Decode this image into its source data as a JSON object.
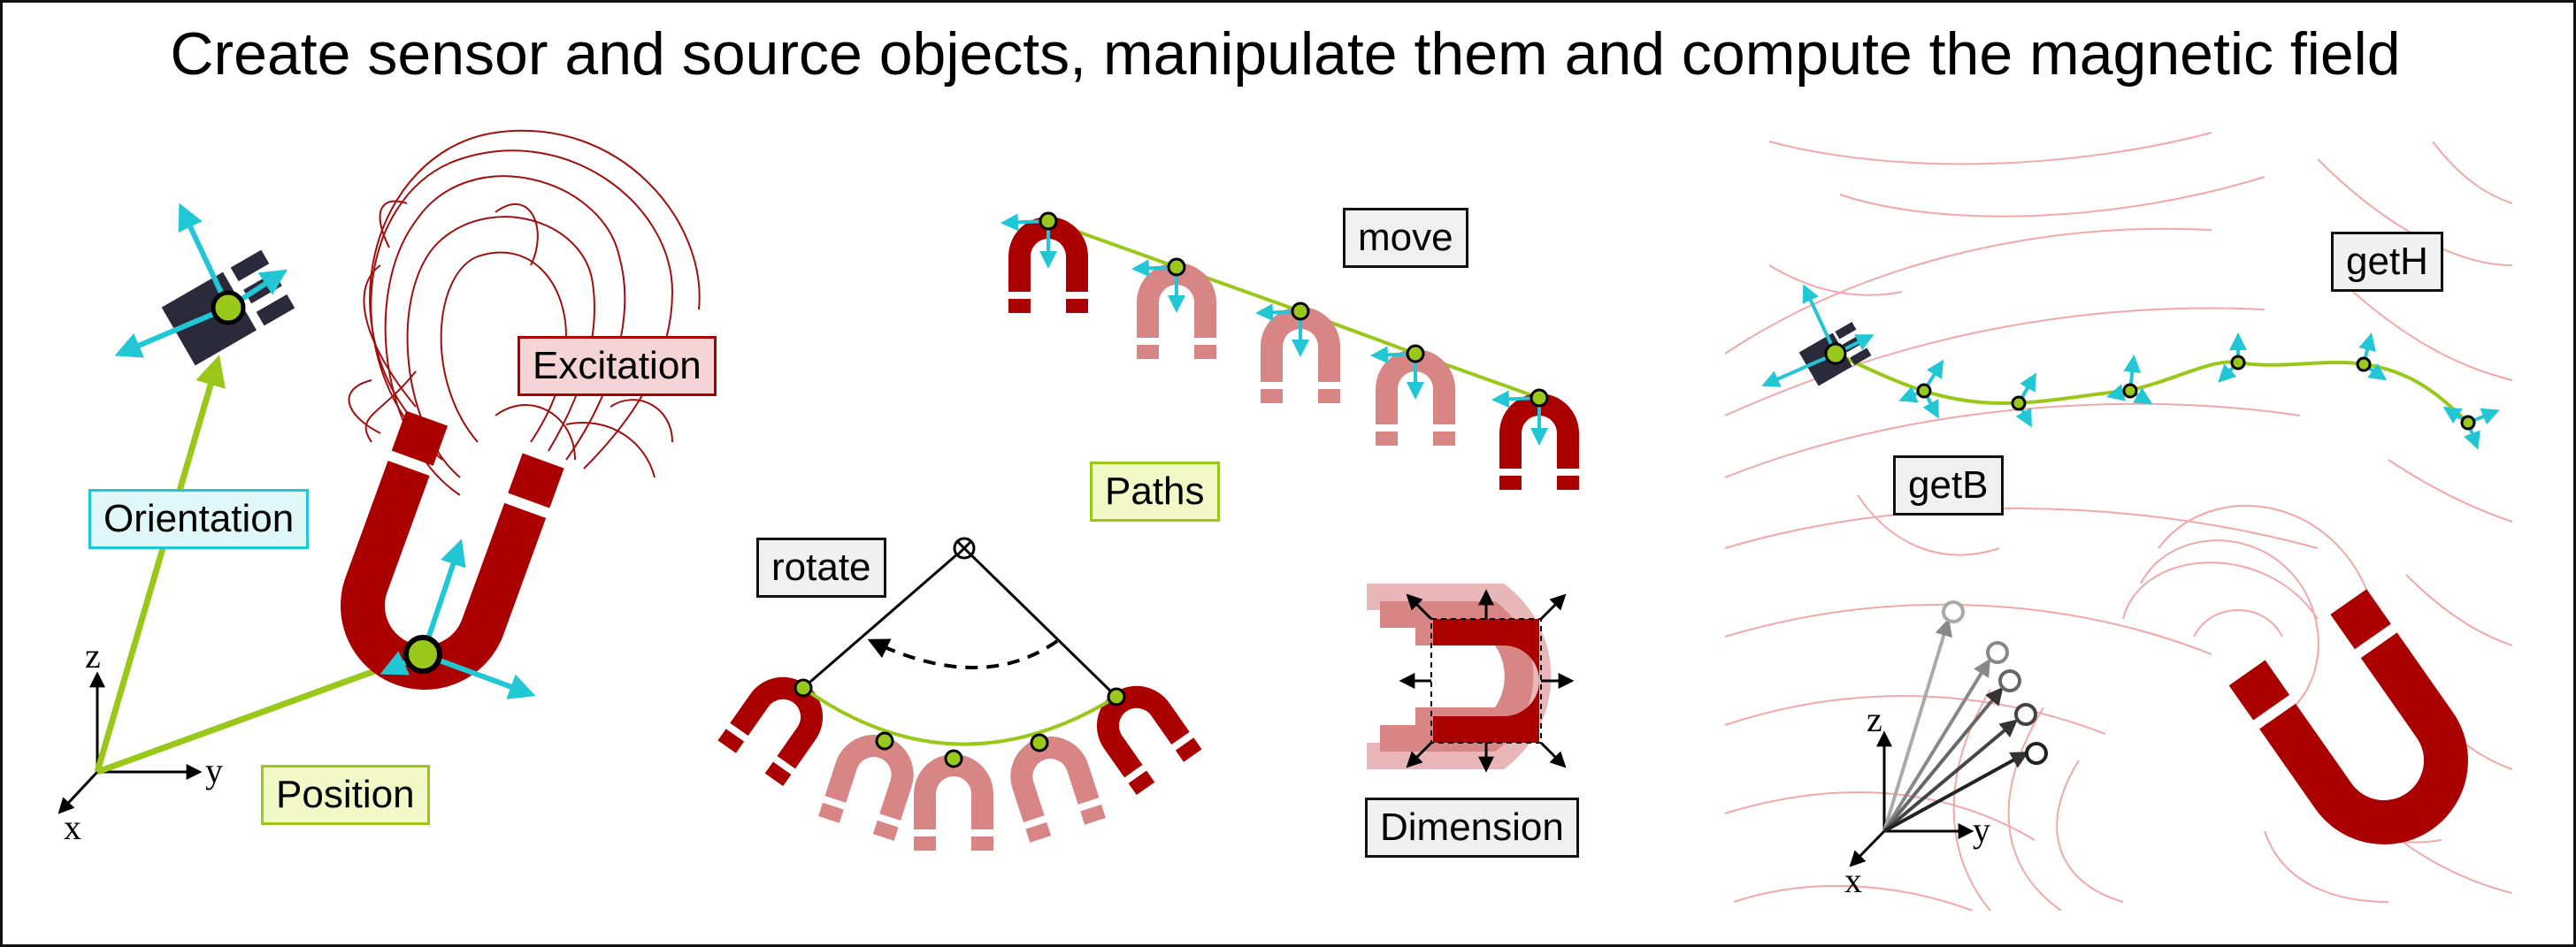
{
  "title": "Create sensor and source objects, manipulate them and compute the magnetic field",
  "labels": {
    "excitation": "Excitation",
    "orientation": "Orientation",
    "position": "Position",
    "move": "move",
    "paths": "Paths",
    "rotate": "rotate",
    "dimension": "Dimension",
    "getH": "getH",
    "getB": "getB"
  },
  "axes": {
    "x": "x",
    "y": "y",
    "z": "z"
  },
  "colors": {
    "magnet_red": "#aa0000",
    "magnet_ghost": "#d88585",
    "path_green": "#9ac81a",
    "arrow_cyan": "#22c7d6",
    "sensor_dark": "#2a2a3a",
    "field_line_dark": "#a01010",
    "field_line_light": "#f2a8a8",
    "label_excitation_bg": "#f4d4d4",
    "label_orientation_bg": "#dff7f8",
    "label_green_bg": "#f2f9c7",
    "label_grey_bg": "#f0f0f0"
  }
}
